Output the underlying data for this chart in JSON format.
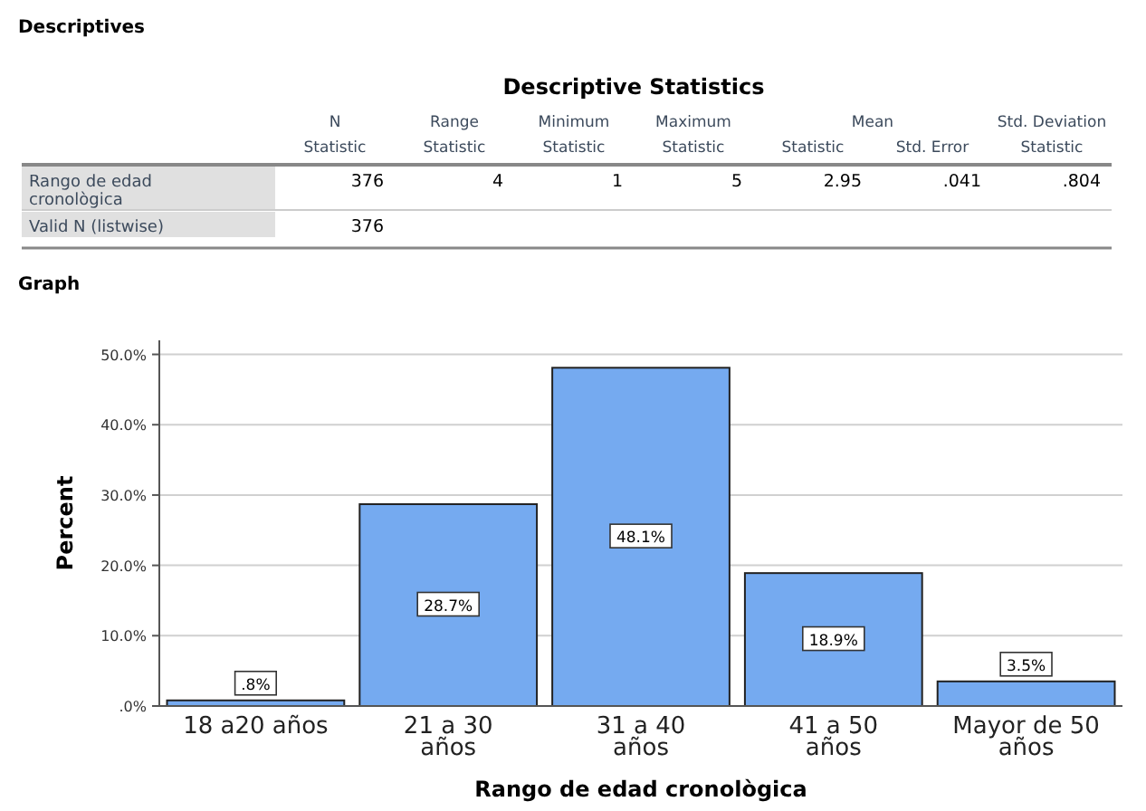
{
  "chart_data": [
    {
      "type": "other",
      "title": "Descriptives",
      "subtitle": "Descriptive Statistics",
      "annotations": [
        "N",
        "Range",
        "Minimum",
        "Maximum",
        "Mean",
        "Std. Deviation",
        "Statistic",
        "Statistic",
        "Statistic",
        "Statistic",
        "Statistic",
        "Std. Error",
        "Statistic",
        "Rango de edad cronològica",
        "376",
        "4",
        "1",
        "5",
        "2.95",
        ".041",
        ".804",
        "Valid N (listwise)",
        "376"
      ]
    },
    {
      "type": "bar",
      "title": "Graph",
      "xlabel": "Rango de edad cronològica",
      "ylabel": "Percent",
      "categories": [
        "18 a20 años",
        "21 a 30 años",
        "31 a 40 años",
        "41 a 50 años",
        "Mayor de 50 años"
      ],
      "values": [
        0.8,
        28.7,
        48.1,
        18.9,
        3.5
      ],
      "value_labels": [
        ".8%",
        "28.7%",
        "48.1%",
        "18.9%",
        "3.5%"
      ],
      "color": "#75aaf0",
      "ylim": [
        0,
        52
      ],
      "yticks": [
        {
          "value": 0,
          "label": ".0%"
        },
        {
          "value": 10,
          "label": "10.0%"
        },
        {
          "value": 20,
          "label": "20.0%"
        },
        {
          "value": 30,
          "label": "30.0%"
        },
        {
          "value": 40,
          "label": "40.0%"
        },
        {
          "value": 50,
          "label": "50.0%"
        }
      ],
      "grid": "y"
    }
  ]
}
